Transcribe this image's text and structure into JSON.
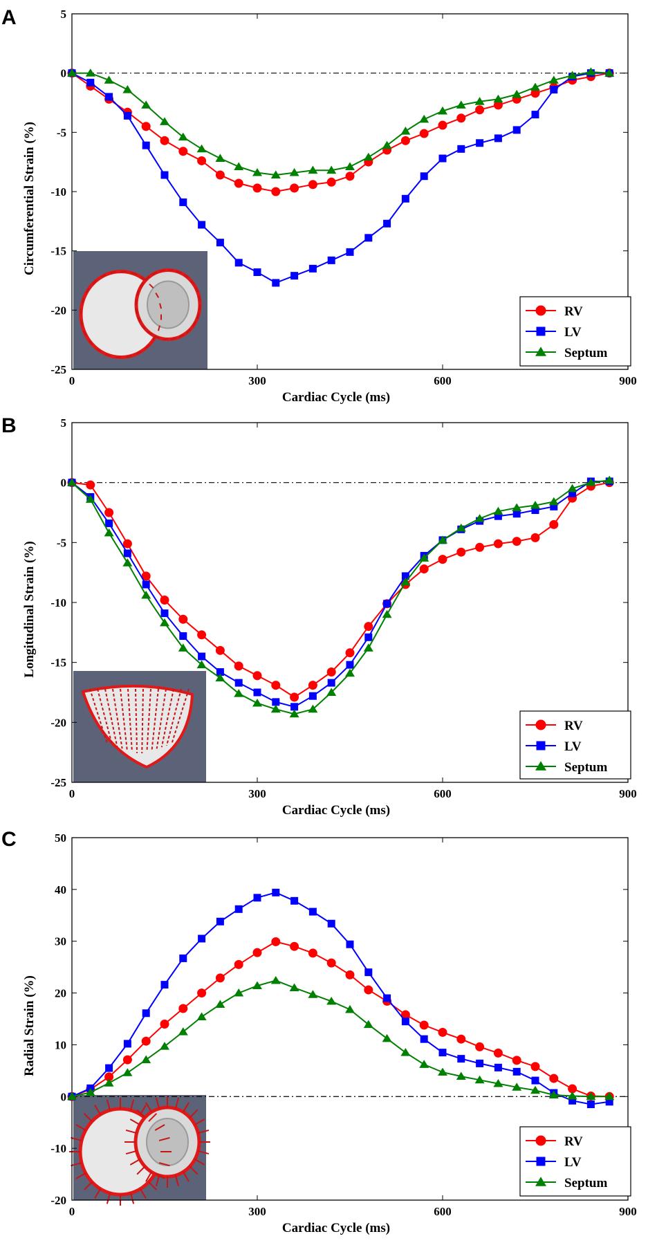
{
  "colors": {
    "RV": "#ff0000",
    "LV": "#0000ff",
    "Septum": "#008000",
    "inset_bg": "#5c6378"
  },
  "chart_data": [
    {
      "panel": "A",
      "type": "line",
      "xlabel": "Cardiac Cycle (ms)",
      "ylabel": "Circumferential Strain (%)",
      "xlim": [
        0,
        900
      ],
      "ylim": [
        -25,
        5
      ],
      "xticks": [
        0,
        300,
        600,
        900
      ],
      "yticks": [
        5,
        0,
        -5,
        -10,
        -15,
        -20,
        -25
      ],
      "legend_position": "bottom-right",
      "inset": "heart-circumferential-inset",
      "series": [
        {
          "name": "RV",
          "marker": "circle",
          "x": [
            0,
            30,
            60,
            90,
            120,
            150,
            180,
            210,
            240,
            270,
            300,
            330,
            360,
            390,
            420,
            450,
            480,
            510,
            540,
            570,
            600,
            630,
            660,
            690,
            720,
            750,
            780,
            810,
            840,
            870
          ],
          "y": [
            0,
            -1.1,
            -2.2,
            -3.3,
            -4.5,
            -5.7,
            -6.6,
            -7.4,
            -8.6,
            -9.3,
            -9.7,
            -10.0,
            -9.7,
            -9.4,
            -9.2,
            -8.7,
            -7.5,
            -6.5,
            -5.7,
            -5.1,
            -4.4,
            -3.8,
            -3.1,
            -2.7,
            -2.2,
            -1.7,
            -1.2,
            -0.6,
            -0.3,
            0
          ]
        },
        {
          "name": "LV",
          "marker": "square",
          "x": [
            0,
            30,
            60,
            90,
            120,
            150,
            180,
            210,
            240,
            270,
            300,
            330,
            360,
            390,
            420,
            450,
            480,
            510,
            540,
            570,
            600,
            630,
            660,
            690,
            720,
            750,
            780,
            810,
            840,
            870
          ],
          "y": [
            0,
            -0.8,
            -2.0,
            -3.6,
            -6.1,
            -8.6,
            -10.9,
            -12.8,
            -14.3,
            -16.0,
            -16.8,
            -17.7,
            -17.1,
            -16.5,
            -15.8,
            -15.1,
            -13.9,
            -12.7,
            -10.6,
            -8.7,
            -7.2,
            -6.4,
            -5.9,
            -5.5,
            -4.8,
            -3.5,
            -1.4,
            -0.3,
            0,
            0
          ]
        },
        {
          "name": "Septum",
          "marker": "triangle",
          "x": [
            0,
            30,
            60,
            90,
            120,
            150,
            180,
            210,
            240,
            270,
            300,
            330,
            360,
            390,
            420,
            450,
            480,
            510,
            540,
            570,
            600,
            630,
            660,
            690,
            720,
            750,
            780,
            810,
            840,
            870
          ],
          "y": [
            0,
            0,
            -0.6,
            -1.4,
            -2.7,
            -4.1,
            -5.4,
            -6.4,
            -7.2,
            -7.9,
            -8.4,
            -8.6,
            -8.4,
            -8.2,
            -8.2,
            -7.9,
            -7.1,
            -6.1,
            -4.9,
            -3.9,
            -3.2,
            -2.7,
            -2.4,
            -2.2,
            -1.8,
            -1.2,
            -0.6,
            -0.2,
            0.1,
            0
          ]
        }
      ]
    },
    {
      "panel": "B",
      "type": "line",
      "xlabel": "Cardiac Cycle (ms)",
      "ylabel": "Longitudinal Strain (%)",
      "xlim": [
        0,
        900
      ],
      "ylim": [
        -25,
        5
      ],
      "xticks": [
        0,
        300,
        600,
        900
      ],
      "yticks": [
        5,
        0,
        -5,
        -10,
        -15,
        -20,
        -25
      ],
      "legend_position": "bottom-right",
      "inset": "heart-longitudinal-inset",
      "series": [
        {
          "name": "RV",
          "marker": "circle",
          "x": [
            0,
            30,
            60,
            90,
            120,
            150,
            180,
            210,
            240,
            270,
            300,
            330,
            360,
            390,
            420,
            450,
            480,
            510,
            540,
            570,
            600,
            630,
            660,
            690,
            720,
            750,
            780,
            810,
            840,
            870
          ],
          "y": [
            0,
            -0.2,
            -2.5,
            -5.1,
            -7.8,
            -9.8,
            -11.4,
            -12.7,
            -14.0,
            -15.3,
            -16.1,
            -16.9,
            -17.9,
            -16.9,
            -15.8,
            -14.2,
            -12.0,
            -10.1,
            -8.5,
            -7.2,
            -6.4,
            -5.8,
            -5.4,
            -5.1,
            -4.9,
            -4.6,
            -3.5,
            -1.3,
            -0.3,
            0
          ]
        },
        {
          "name": "LV",
          "marker": "square",
          "x": [
            0,
            30,
            60,
            90,
            120,
            150,
            180,
            210,
            240,
            270,
            300,
            330,
            360,
            390,
            420,
            450,
            480,
            510,
            540,
            570,
            600,
            630,
            660,
            690,
            720,
            750,
            780,
            810,
            840,
            870
          ],
          "y": [
            0,
            -1.2,
            -3.4,
            -5.9,
            -8.5,
            -10.9,
            -12.8,
            -14.5,
            -15.8,
            -16.7,
            -17.5,
            -18.3,
            -18.7,
            -17.8,
            -16.7,
            -15.2,
            -12.9,
            -10.1,
            -7.8,
            -6.1,
            -4.8,
            -3.9,
            -3.2,
            -2.8,
            -2.6,
            -2.3,
            -2.0,
            -0.9,
            0.1,
            0.1
          ]
        },
        {
          "name": "Septum",
          "marker": "triangle",
          "x": [
            0,
            30,
            60,
            90,
            120,
            150,
            180,
            210,
            240,
            270,
            300,
            330,
            360,
            390,
            420,
            450,
            480,
            510,
            540,
            570,
            600,
            630,
            660,
            690,
            720,
            750,
            780,
            810,
            840,
            870
          ],
          "y": [
            0,
            -1.4,
            -4.2,
            -6.7,
            -9.4,
            -11.7,
            -13.8,
            -15.2,
            -16.3,
            -17.6,
            -18.4,
            -18.9,
            -19.3,
            -18.9,
            -17.5,
            -15.9,
            -13.8,
            -11.0,
            -8.3,
            -6.3,
            -4.8,
            -3.8,
            -3.0,
            -2.4,
            -2.1,
            -1.9,
            -1.6,
            -0.5,
            0,
            0.2
          ]
        }
      ]
    },
    {
      "panel": "C",
      "type": "line",
      "xlabel": "Cardiac Cycle (ms)",
      "ylabel": "Radial Strain (%)",
      "xlim": [
        0,
        900
      ],
      "ylim": [
        -20,
        50
      ],
      "xticks": [
        0,
        300,
        600,
        900
      ],
      "yticks": [
        50,
        40,
        30,
        20,
        10,
        0,
        -10,
        -20
      ],
      "legend_position": "bottom-right",
      "inset": "heart-radial-inset",
      "series": [
        {
          "name": "RV",
          "marker": "circle",
          "x": [
            0,
            30,
            60,
            90,
            120,
            150,
            180,
            210,
            240,
            270,
            300,
            330,
            360,
            390,
            420,
            450,
            480,
            510,
            540,
            570,
            600,
            630,
            660,
            690,
            720,
            750,
            780,
            810,
            840,
            870
          ],
          "y": [
            0,
            1.4,
            3.8,
            7.1,
            10.7,
            14.0,
            17.0,
            20.0,
            22.9,
            25.5,
            27.8,
            29.9,
            29.0,
            27.7,
            25.8,
            23.5,
            20.6,
            18.4,
            15.8,
            13.8,
            12.4,
            11.1,
            9.6,
            8.4,
            7.0,
            5.8,
            3.5,
            1.5,
            0.1,
            0
          ]
        },
        {
          "name": "LV",
          "marker": "square",
          "x": [
            0,
            30,
            60,
            90,
            120,
            150,
            180,
            210,
            240,
            270,
            300,
            330,
            360,
            390,
            420,
            450,
            480,
            510,
            540,
            570,
            600,
            630,
            660,
            690,
            720,
            750,
            780,
            810,
            840,
            870
          ],
          "y": [
            0,
            1.6,
            5.5,
            10.2,
            16.1,
            21.6,
            26.7,
            30.5,
            33.8,
            36.2,
            38.4,
            39.4,
            37.8,
            35.7,
            33.4,
            29.4,
            24.0,
            19.0,
            14.5,
            11.1,
            8.5,
            7.3,
            6.4,
            5.6,
            4.8,
            3.1,
            0.7,
            -0.8,
            -1.5,
            -1.0
          ]
        },
        {
          "name": "Septum",
          "marker": "triangle",
          "x": [
            0,
            30,
            60,
            90,
            120,
            150,
            180,
            210,
            240,
            270,
            300,
            330,
            360,
            390,
            420,
            450,
            480,
            510,
            540,
            570,
            600,
            630,
            660,
            690,
            720,
            750,
            780,
            810,
            840,
            870
          ],
          "y": [
            0,
            0.8,
            2.6,
            4.6,
            7.1,
            9.7,
            12.5,
            15.4,
            17.8,
            20.0,
            21.4,
            22.4,
            21.0,
            19.7,
            18.4,
            16.8,
            13.9,
            11.2,
            8.5,
            6.2,
            4.7,
            3.9,
            3.2,
            2.5,
            1.8,
            1.2,
            0.3,
            0.1,
            0,
            0
          ]
        }
      ]
    }
  ]
}
